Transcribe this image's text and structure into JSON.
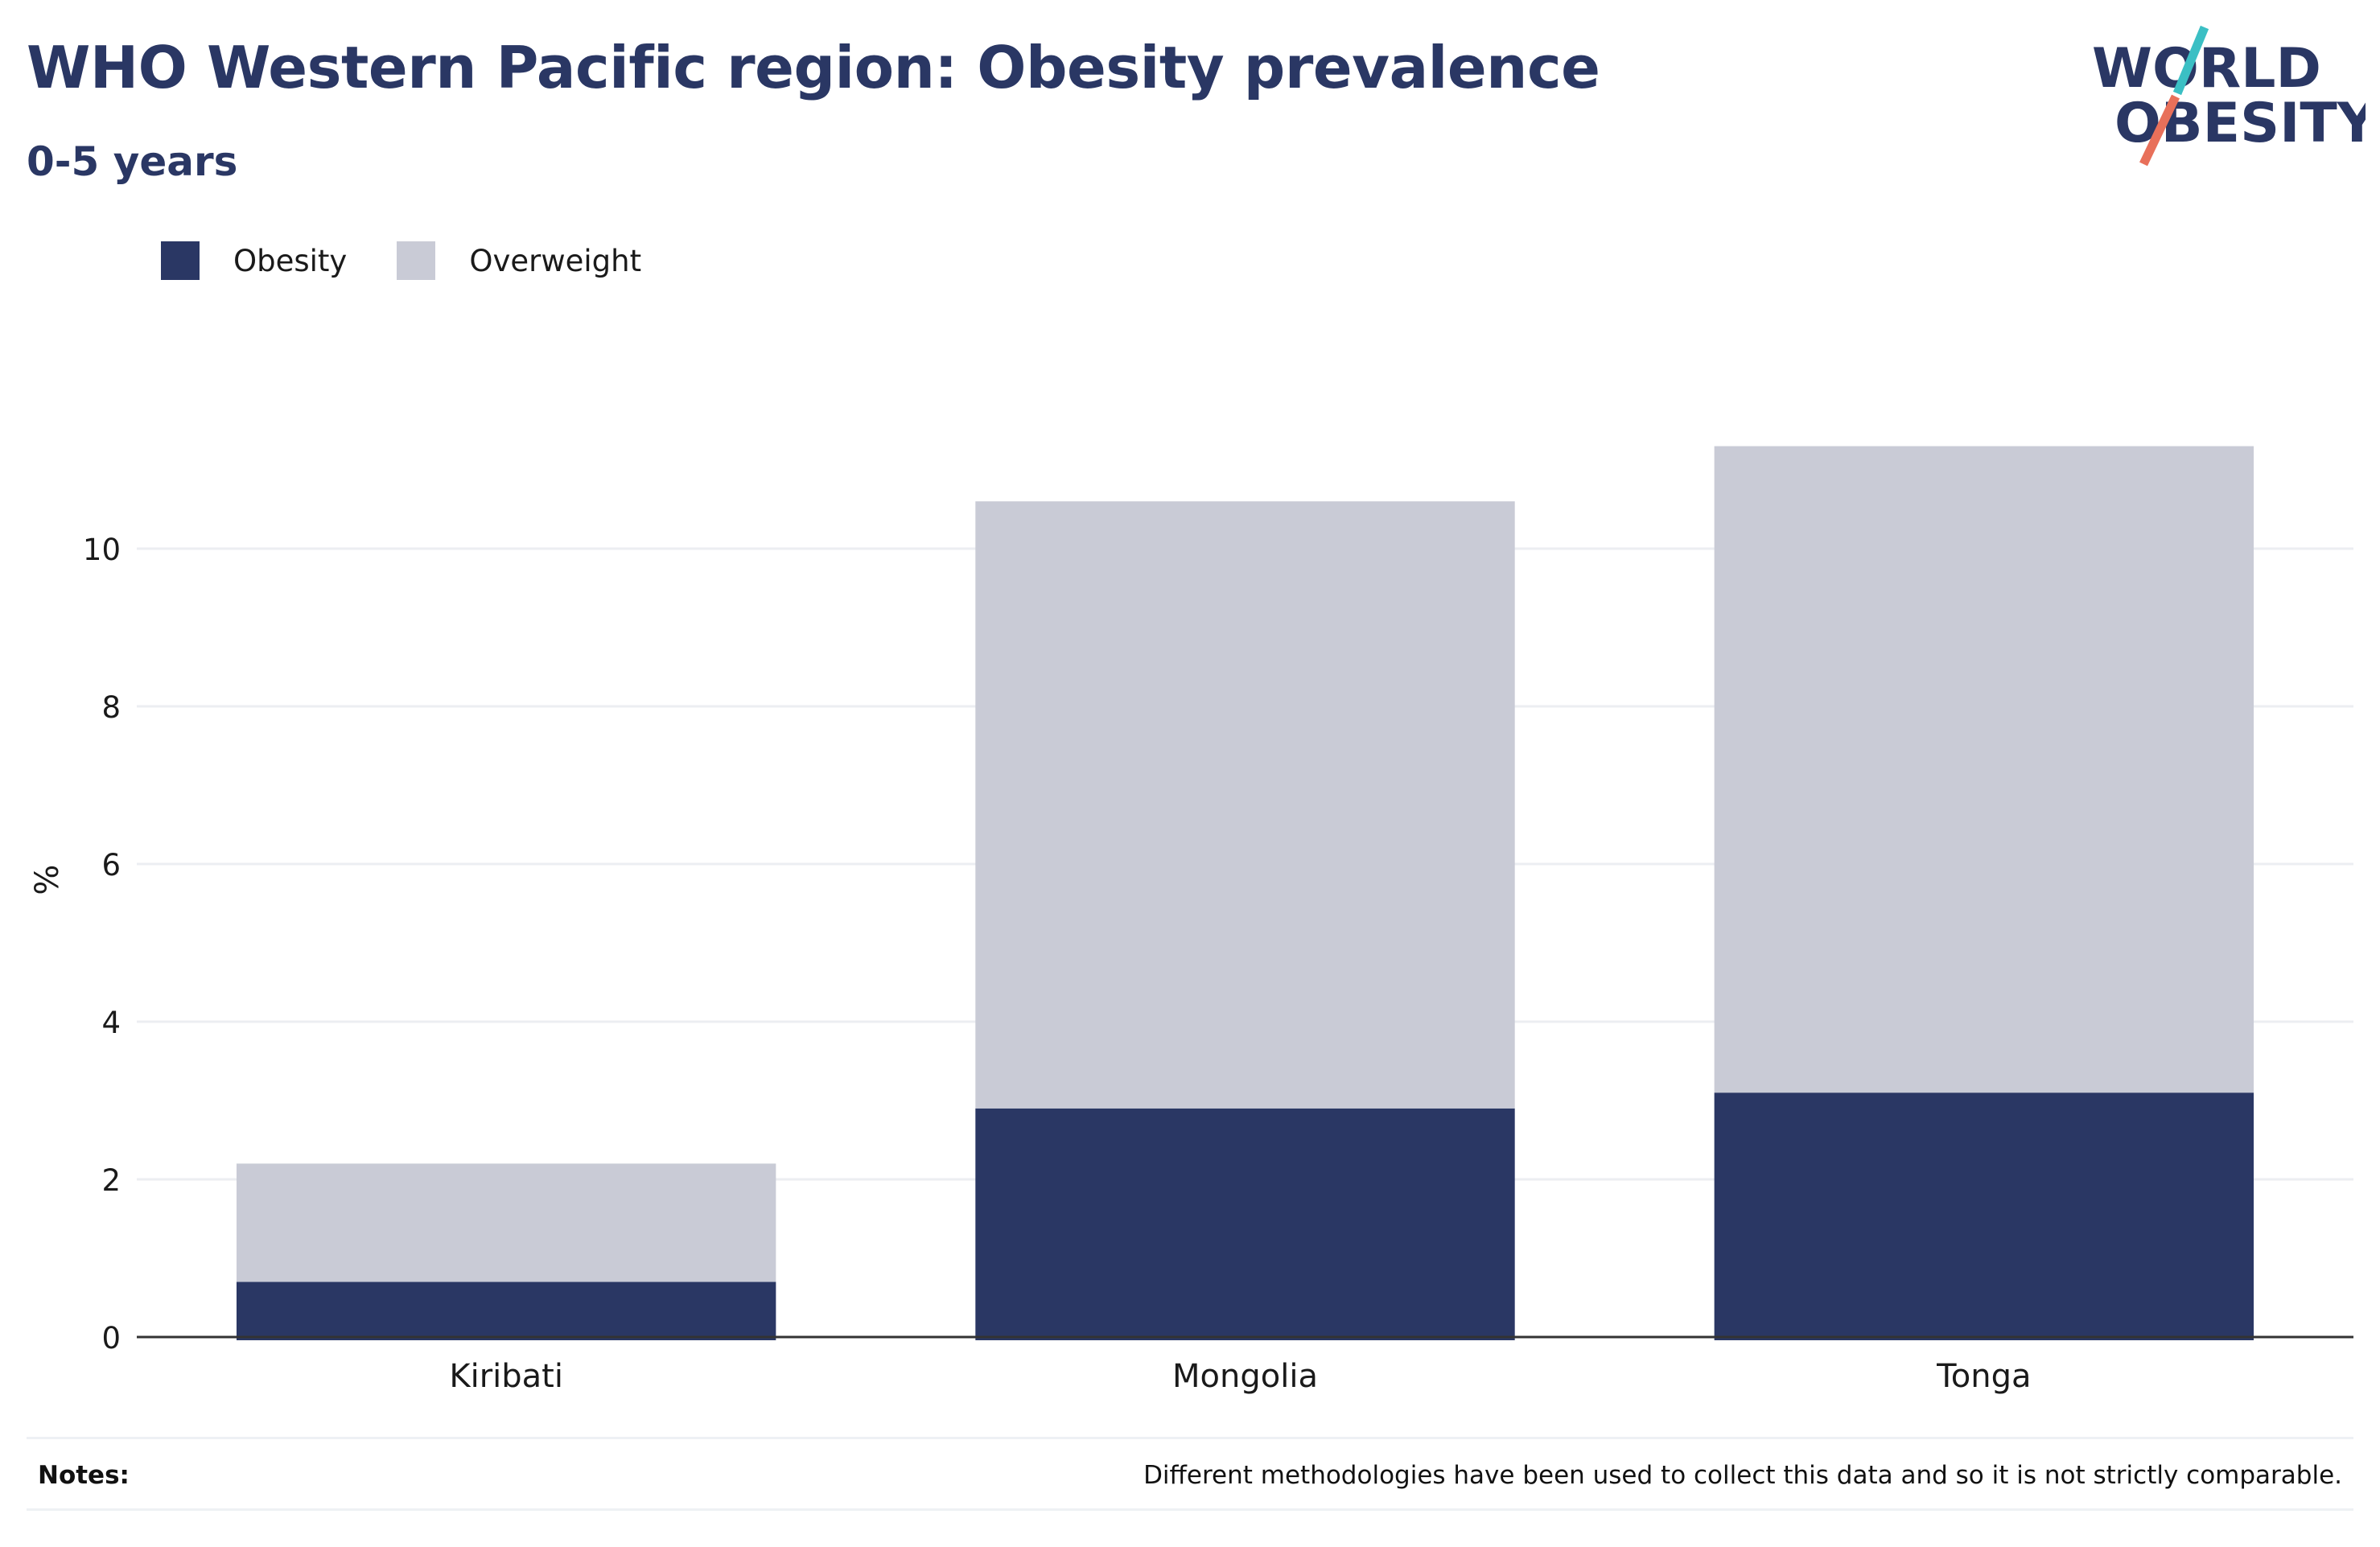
{
  "title": "WHO Western Pacific region: Obesity prevalence",
  "subtitle": "0-5 years",
  "logo": {
    "line1": "WORLD",
    "line2": "OBESITY",
    "colors": {
      "text": "#2a3764",
      "slash_top": "#3bbfc4",
      "slash_bottom": "#e8705a"
    }
  },
  "colors": {
    "obesity": "#2a3764",
    "overweight": "#c9cbd6",
    "grid": "#eceef2",
    "axis": "#333333"
  },
  "notes": {
    "label": "Notes:",
    "text": "Different methodologies have been used to collect this data and so it is not strictly comparable."
  },
  "chart_data": {
    "type": "bar",
    "stacked": true,
    "title": "WHO Western Pacific region: Obesity prevalence",
    "subtitle": "0-5 years",
    "xlabel": "",
    "ylabel": "%",
    "categories": [
      "Kiribati",
      "Mongolia",
      "Tonga"
    ],
    "series": [
      {
        "name": "Obesity",
        "values": [
          0.7,
          2.9,
          3.1
        ],
        "color": "#2a3764"
      },
      {
        "name": "Overweight",
        "values": [
          1.5,
          7.7,
          8.2
        ],
        "color": "#c9cbd6"
      }
    ],
    "ylim": [
      0,
      11.5
    ],
    "yticks": [
      0,
      2,
      4,
      6,
      8,
      10
    ],
    "grid": true,
    "legend_position": "top-left"
  }
}
